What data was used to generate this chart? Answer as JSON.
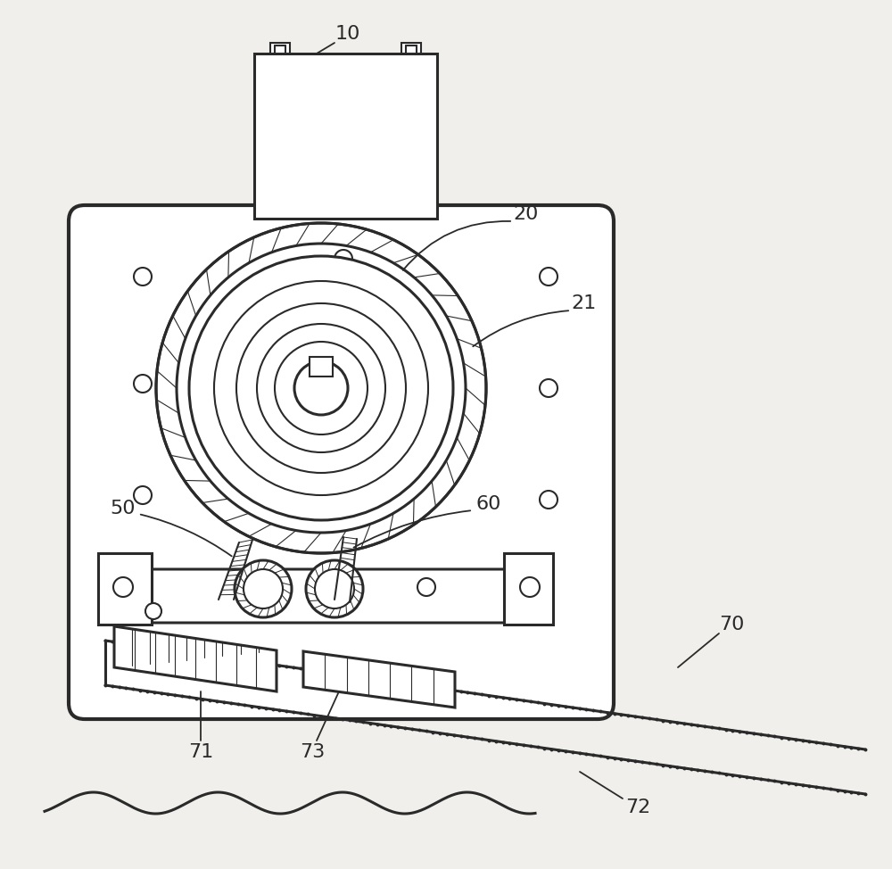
{
  "bg_color": "#f0efeb",
  "line_color": "#2a2a2a",
  "white": "#ffffff",
  "label_fontsize": 16,
  "figsize": [
    10.0,
    9.74
  ],
  "dpi": 100
}
